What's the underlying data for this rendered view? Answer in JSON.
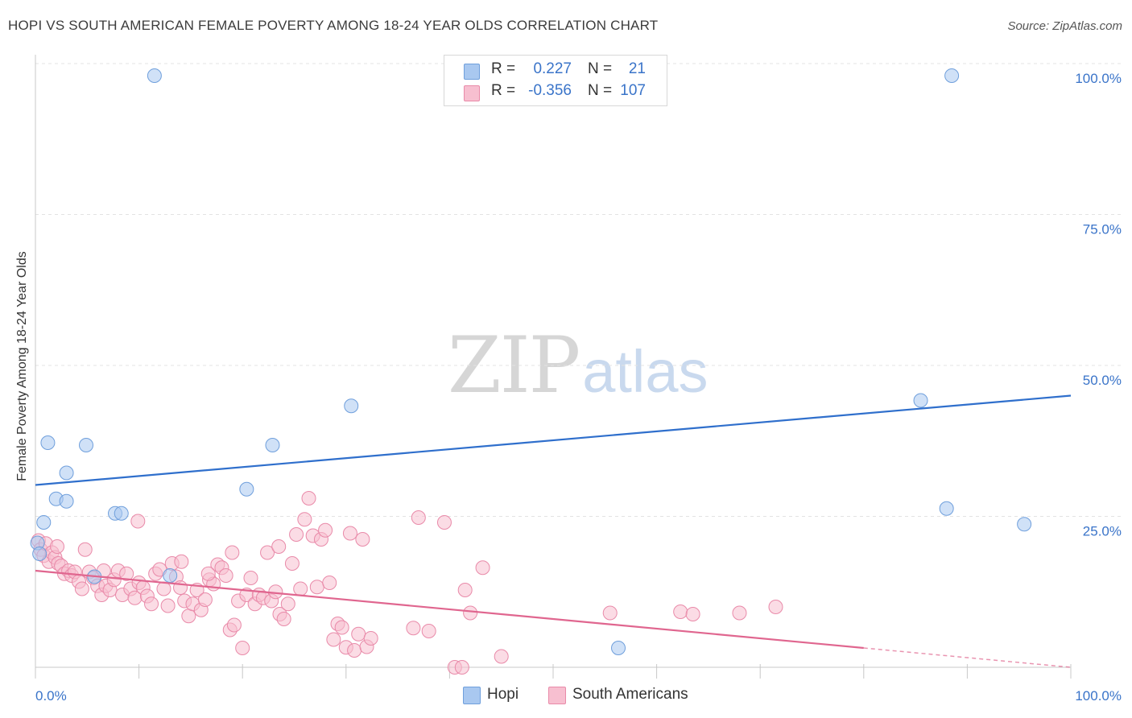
{
  "title": "HOPI VS SOUTH AMERICAN FEMALE POVERTY AMONG 18-24 YEAR OLDS CORRELATION CHART",
  "source": "Source: ZipAtlas.com",
  "watermark": {
    "zip": "ZIP",
    "atlas": "atlas"
  },
  "legend_stats": [
    {
      "r_label": "R =",
      "r_value": "0.227",
      "n_label": "N =",
      "n_value": "21",
      "color": "#a9c8f0",
      "border": "#6f9fdc"
    },
    {
      "r_label": "R =",
      "r_value": "-0.356",
      "n_label": "N =",
      "n_value": "107",
      "color": "#f7bfd0",
      "border": "#e98aa9"
    }
  ],
  "chart_data": {
    "type": "scatter",
    "title": "HOPI VS SOUTH AMERICAN FEMALE POVERTY AMONG 18-24 YEAR OLDS CORRELATION CHART",
    "xlabel": "",
    "ylabel": "Female Poverty Among 18-24 Year Olds",
    "xlim": [
      0,
      100
    ],
    "ylim": [
      0,
      100
    ],
    "x_tick_labels": [
      "0.0%",
      "100.0%"
    ],
    "y_ticks": [
      {
        "value": 25,
        "label": "25.0%"
      },
      {
        "value": 50,
        "label": "50.0%"
      },
      {
        "value": 75,
        "label": "75.0%"
      },
      {
        "value": 100,
        "label": "100.0%"
      }
    ],
    "grid": true,
    "legend_placement": "bottom-center",
    "series": [
      {
        "name": "Hopi",
        "color": "#a9c8f0",
        "stroke": "#6f9fdc",
        "trend_color": "#2f6fcc",
        "trend": {
          "x0": 0,
          "y0": 30.2,
          "x1": 100,
          "y1": 45.0,
          "solid_until": 100
        },
        "points": [
          [
            11.5,
            98
          ],
          [
            88.5,
            98
          ],
          [
            30.5,
            43.3
          ],
          [
            1.2,
            37.2
          ],
          [
            4.9,
            36.8
          ],
          [
            22.9,
            36.8
          ],
          [
            3.0,
            32.2
          ],
          [
            20.4,
            29.5
          ],
          [
            2.0,
            27.9
          ],
          [
            3.0,
            27.5
          ],
          [
            7.7,
            25.5
          ],
          [
            8.3,
            25.5
          ],
          [
            0.8,
            24.0
          ],
          [
            88.0,
            26.3
          ],
          [
            95.5,
            23.7
          ],
          [
            0.2,
            20.6
          ],
          [
            0.4,
            18.8
          ],
          [
            5.7,
            15.0
          ],
          [
            13.0,
            15.2
          ],
          [
            56.3,
            3.2
          ],
          [
            85.5,
            44.2
          ]
        ]
      },
      {
        "name": "South Americans",
        "color": "#f7bfd0",
        "stroke": "#e98aa9",
        "trend_color": "#e0668f",
        "trend": {
          "x0": 0,
          "y0": 16.0,
          "x1": 100,
          "y1": 0.0,
          "solid_until": 80
        },
        "points": [
          [
            0.3,
            21.0
          ],
          [
            0.5,
            19.5
          ],
          [
            0.8,
            18.5
          ],
          [
            1.0,
            20.5
          ],
          [
            1.3,
            17.5
          ],
          [
            1.6,
            19.0
          ],
          [
            1.9,
            18.2
          ],
          [
            2.2,
            17.2
          ],
          [
            2.5,
            16.8
          ],
          [
            2.8,
            15.5
          ],
          [
            3.2,
            16.0
          ],
          [
            3.5,
            15.2
          ],
          [
            3.8,
            15.8
          ],
          [
            4.2,
            14.2
          ],
          [
            4.5,
            13.0
          ],
          [
            4.8,
            19.5
          ],
          [
            5.2,
            15.8
          ],
          [
            5.6,
            14.8
          ],
          [
            6.0,
            13.5
          ],
          [
            6.4,
            12.0
          ],
          [
            6.8,
            13.5
          ],
          [
            7.2,
            12.8
          ],
          [
            7.6,
            14.5
          ],
          [
            8.0,
            16.0
          ],
          [
            8.4,
            12.0
          ],
          [
            8.8,
            15.5
          ],
          [
            9.2,
            13.0
          ],
          [
            9.6,
            11.5
          ],
          [
            10.0,
            14.0
          ],
          [
            10.4,
            13.2
          ],
          [
            10.8,
            11.8
          ],
          [
            11.2,
            10.5
          ],
          [
            11.6,
            15.5
          ],
          [
            12.0,
            16.2
          ],
          [
            12.4,
            13.0
          ],
          [
            12.8,
            10.2
          ],
          [
            13.2,
            17.2
          ],
          [
            13.6,
            15.0
          ],
          [
            14.0,
            13.2
          ],
          [
            14.4,
            11.0
          ],
          [
            14.8,
            8.5
          ],
          [
            15.2,
            10.5
          ],
          [
            15.6,
            12.8
          ],
          [
            16.0,
            9.5
          ],
          [
            16.4,
            11.2
          ],
          [
            16.8,
            14.5
          ],
          [
            17.2,
            13.8
          ],
          [
            17.6,
            17.0
          ],
          [
            18.0,
            16.5
          ],
          [
            18.4,
            15.2
          ],
          [
            18.8,
            6.2
          ],
          [
            19.2,
            7.0
          ],
          [
            19.6,
            11.0
          ],
          [
            20.0,
            3.2
          ],
          [
            20.4,
            12.0
          ],
          [
            20.8,
            14.8
          ],
          [
            21.2,
            10.5
          ],
          [
            21.6,
            12.0
          ],
          [
            22.0,
            11.5
          ],
          [
            22.4,
            19.0
          ],
          [
            22.8,
            11.0
          ],
          [
            23.2,
            12.5
          ],
          [
            23.6,
            8.8
          ],
          [
            24.0,
            8.0
          ],
          [
            24.4,
            10.5
          ],
          [
            24.8,
            17.2
          ],
          [
            25.2,
            22.0
          ],
          [
            25.6,
            13.0
          ],
          [
            26.0,
            24.5
          ],
          [
            26.4,
            28.0
          ],
          [
            26.8,
            21.8
          ],
          [
            27.2,
            13.3
          ],
          [
            27.6,
            21.2
          ],
          [
            28.0,
            22.7
          ],
          [
            28.4,
            14.0
          ],
          [
            28.8,
            4.6
          ],
          [
            29.2,
            7.2
          ],
          [
            29.6,
            6.6
          ],
          [
            30.0,
            3.3
          ],
          [
            30.4,
            22.2
          ],
          [
            30.8,
            2.8
          ],
          [
            31.2,
            5.5
          ],
          [
            31.6,
            21.2
          ],
          [
            32.0,
            3.4
          ],
          [
            32.4,
            4.8
          ],
          [
            37.0,
            24.8
          ],
          [
            38.0,
            6.0
          ],
          [
            40.5,
            0.0
          ],
          [
            41.2,
            0.0
          ],
          [
            41.5,
            12.8
          ],
          [
            42.0,
            9.0
          ],
          [
            43.2,
            16.5
          ],
          [
            45.0,
            1.8
          ],
          [
            55.5,
            9.0
          ],
          [
            62.3,
            9.2
          ],
          [
            63.5,
            8.8
          ],
          [
            68.0,
            9.0
          ],
          [
            2.1,
            20.0
          ],
          [
            6.6,
            16.0
          ],
          [
            9.9,
            24.2
          ],
          [
            14.1,
            17.5
          ],
          [
            16.7,
            15.5
          ],
          [
            19.0,
            19.0
          ],
          [
            23.5,
            20.0
          ],
          [
            36.5,
            6.5
          ],
          [
            39.5,
            24.0
          ],
          [
            71.5,
            10.0
          ]
        ]
      }
    ]
  },
  "legend_bottom": [
    {
      "name": "Hopi",
      "color": "#a9c8f0",
      "border": "#6f9fdc"
    },
    {
      "name": "South Americans",
      "color": "#f7bfd0",
      "border": "#e98aa9"
    }
  ]
}
